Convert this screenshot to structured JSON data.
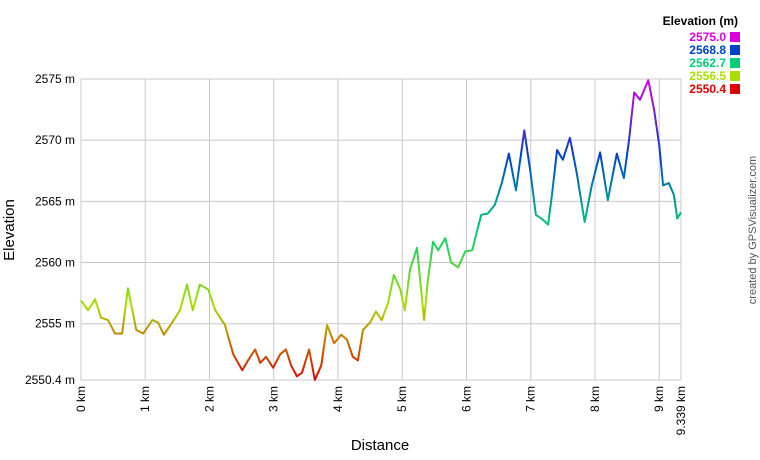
{
  "chart_data": {
    "type": "line",
    "y_label": "Elevation",
    "x_label": "Distance",
    "credit": "created by GPSVisualizer.com",
    "legend": {
      "title": "Elevation (m)",
      "entries": [
        {
          "value": 2575.0,
          "label": "2575.0",
          "color": "#dd00dd"
        },
        {
          "value": 2568.8,
          "label": "2568.8",
          "color": "#0040cc"
        },
        {
          "value": 2562.7,
          "label": "2562.7",
          "color": "#00cc77"
        },
        {
          "value": 2556.5,
          "label": "2556.5",
          "color": "#aadd00"
        },
        {
          "value": 2550.4,
          "label": "2550.4",
          "color": "#dd0000"
        }
      ]
    },
    "xlim": [
      0,
      9.339
    ],
    "ylim": [
      2550.4,
      2575
    ],
    "xticks": [
      {
        "value": 0,
        "label": "0 km"
      },
      {
        "value": 1,
        "label": "1 km"
      },
      {
        "value": 2,
        "label": "2 km"
      },
      {
        "value": 3,
        "label": "3 km"
      },
      {
        "value": 4,
        "label": "4 km"
      },
      {
        "value": 5,
        "label": "5 km"
      },
      {
        "value": 6,
        "label": "6 km"
      },
      {
        "value": 7,
        "label": "7 km"
      },
      {
        "value": 8,
        "label": "8 km"
      },
      {
        "value": 9,
        "label": "9 km"
      },
      {
        "value": 9.339,
        "label": "9.339 km"
      }
    ],
    "yticks": [
      {
        "value": 2550.4,
        "label": "2550.4 m"
      },
      {
        "value": 2555,
        "label": "2555 m"
      },
      {
        "value": 2560,
        "label": "2560 m"
      },
      {
        "value": 2565,
        "label": "2565 m"
      },
      {
        "value": 2570,
        "label": "2570 m"
      },
      {
        "value": 2575,
        "label": "2575 m"
      }
    ],
    "grid": true,
    "x": [
      0,
      0.11,
      0.22,
      0.31,
      0.42,
      0.53,
      0.64,
      0.73,
      0.86,
      0.97,
      1.11,
      1.2,
      1.29,
      1.42,
      1.54,
      1.65,
      1.74,
      1.85,
      1.98,
      2.09,
      2.24,
      2.37,
      2.51,
      2.6,
      2.71,
      2.79,
      2.88,
      2.99,
      3.1,
      3.19,
      3.27,
      3.36,
      3.44,
      3.55,
      3.64,
      3.74,
      3.83,
      3.94,
      4.05,
      4.14,
      4.23,
      4.31,
      4.39,
      4.5,
      4.59,
      4.68,
      4.78,
      4.87,
      4.97,
      5.04,
      5.12,
      5.23,
      5.34,
      5.4,
      5.48,
      5.56,
      5.67,
      5.76,
      5.87,
      5.98,
      6.09,
      6.16,
      6.23,
      6.33,
      6.44,
      6.55,
      6.66,
      6.77,
      6.9,
      6.99,
      7.08,
      7.19,
      7.27,
      7.33,
      7.41,
      7.5,
      7.61,
      7.72,
      7.84,
      7.95,
      8.08,
      8.2,
      8.34,
      8.45,
      8.53,
      8.61,
      8.7,
      8.83,
      8.92,
      9.0,
      9.06,
      9.15,
      9.23,
      9.28,
      9.339
    ],
    "values": [
      2556.9,
      2556.1,
      2557.0,
      2555.5,
      2555.3,
      2554.2,
      2554.2,
      2557.9,
      2554.5,
      2554.2,
      2555.3,
      2555.1,
      2554.1,
      2555.1,
      2556.1,
      2558.2,
      2556.1,
      2558.2,
      2557.8,
      2556.1,
      2554.9,
      2552.5,
      2551.2,
      2552.0,
      2552.9,
      2551.8,
      2552.3,
      2551.4,
      2552.5,
      2552.9,
      2551.6,
      2550.7,
      2551.0,
      2552.9,
      2550.4,
      2551.6,
      2554.9,
      2553.4,
      2554.1,
      2553.7,
      2552.3,
      2552.0,
      2554.5,
      2555.1,
      2556.0,
      2555.3,
      2556.7,
      2559.0,
      2557.8,
      2556.1,
      2559.4,
      2561.2,
      2555.3,
      2558.6,
      2561.7,
      2561.0,
      2562.0,
      2560.0,
      2559.6,
      2560.9,
      2561.0,
      2562.5,
      2563.9,
      2564.0,
      2564.7,
      2566.5,
      2568.9,
      2565.9,
      2570.8,
      2567.6,
      2563.9,
      2563.5,
      2563.1,
      2565.5,
      2569.2,
      2568.4,
      2570.2,
      2567.2,
      2563.3,
      2566.3,
      2569.0,
      2565.1,
      2568.9,
      2566.9,
      2570.0,
      2573.9,
      2573.3,
      2574.9,
      2572.5,
      2569.6,
      2566.3,
      2566.5,
      2565.5,
      2563.6,
      2564.1
    ]
  }
}
